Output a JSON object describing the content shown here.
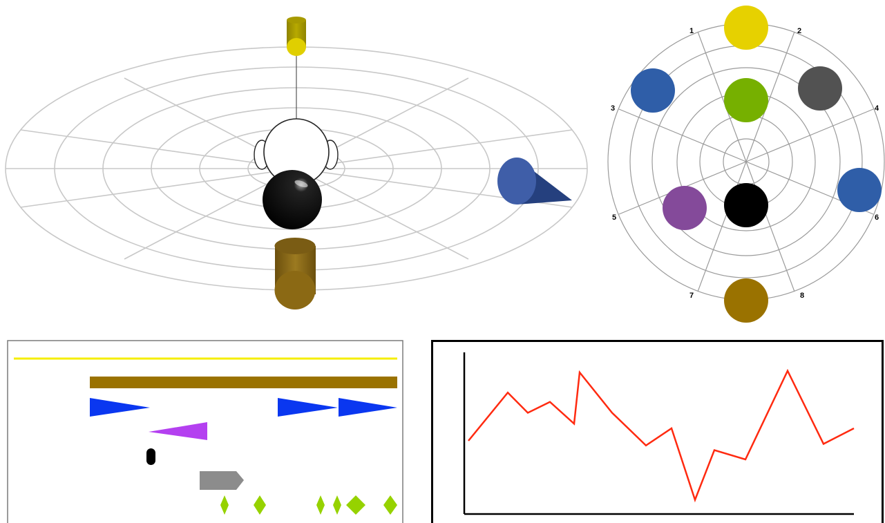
{
  "scene": {
    "ring_color": "#c8c8c8",
    "head_fill": "#ffffff",
    "listener_sphere_color": "#000000",
    "sources": [
      {
        "name": "top-cylinder",
        "color": "#d4c400"
      },
      {
        "name": "right-cone",
        "color": "#3f5ea8"
      },
      {
        "name": "bottom-cylinder",
        "color": "#8b6914"
      }
    ]
  },
  "polar": {
    "spoke_labels": [
      "1",
      "2",
      "3",
      "4",
      "5",
      "6",
      "7",
      "8"
    ],
    "sources": [
      {
        "name": "yellow",
        "color": "#e6d100"
      },
      {
        "name": "blue-left",
        "color": "#2f5ea8"
      },
      {
        "name": "gray",
        "color": "#525252"
      },
      {
        "name": "green",
        "color": "#76b000"
      },
      {
        "name": "blue-right",
        "color": "#2f5ea8"
      },
      {
        "name": "purple",
        "color": "#844a9a"
      },
      {
        "name": "black",
        "color": "#000000"
      },
      {
        "name": "brown",
        "color": "#9a7200"
      }
    ]
  },
  "timeline": {
    "lanes": [
      {
        "name": "yellow-line",
        "color": "#f5ee00"
      },
      {
        "name": "brown-bar",
        "color": "#9a7200"
      },
      {
        "name": "blue-triangles",
        "color": "#0a37f0"
      },
      {
        "name": "purple-triangle",
        "color": "#b440f0"
      },
      {
        "name": "black-pill",
        "color": "#000000"
      },
      {
        "name": "gray-arrow",
        "color": "#8c8c8c"
      },
      {
        "name": "green-diamonds",
        "color": "#96d200"
      }
    ]
  },
  "chart_data": {
    "type": "line",
    "title": "",
    "xlabel": "",
    "ylabel": "",
    "line_color": "#ff2a10",
    "series": [
      {
        "values": [
          0.44,
          0.75,
          0.62,
          0.69,
          0.55,
          0.88,
          0.62,
          0.41,
          0.52,
          0.06,
          0.38,
          0.32,
          0.89,
          0.42,
          0.52
        ]
      }
    ]
  }
}
